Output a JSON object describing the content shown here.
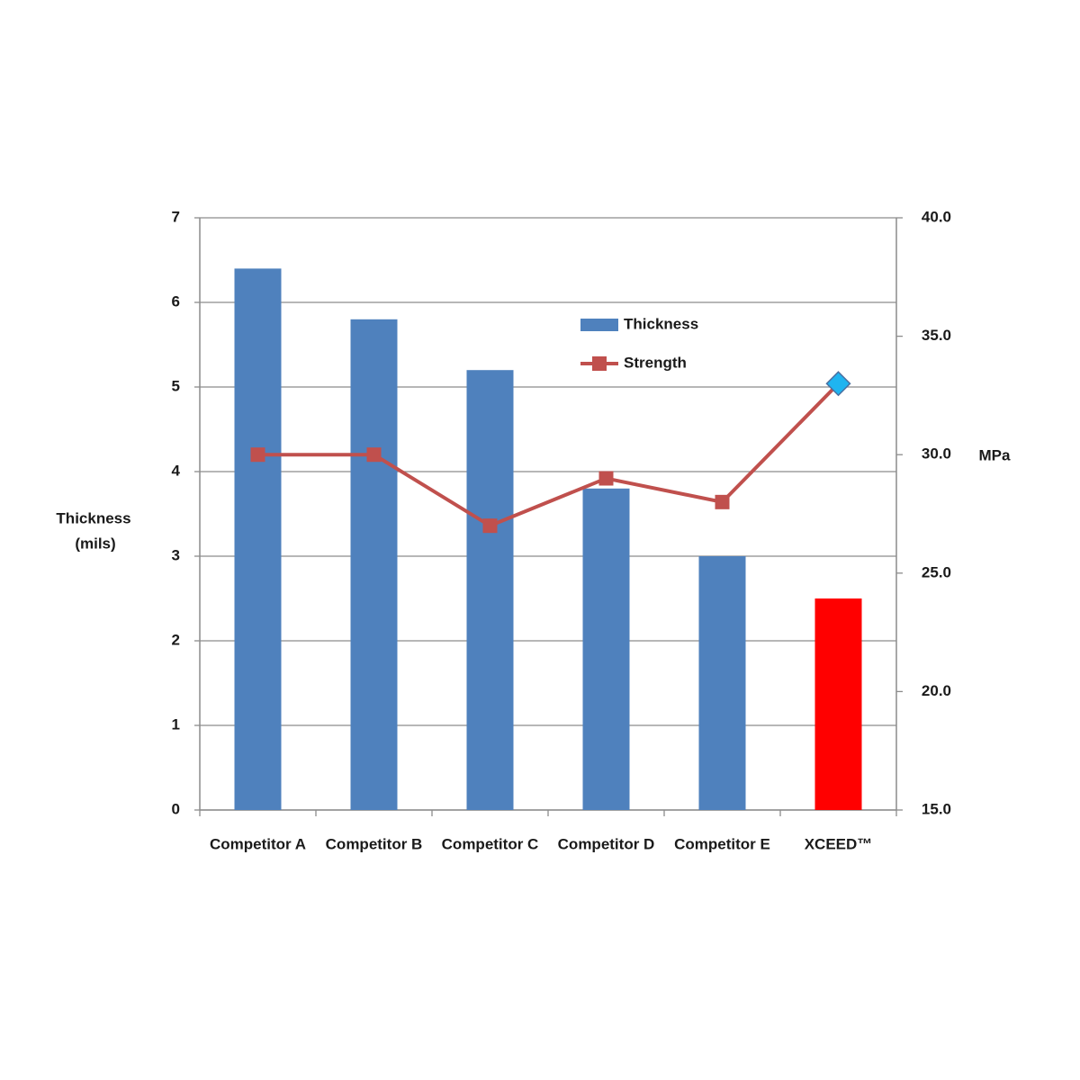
{
  "chart_data": {
    "type": "bar_line",
    "categories": [
      "Competitor A",
      "Competitor B",
      "Competitor C",
      "Competitor D",
      "Competitor E",
      "XCEED™"
    ],
    "series": [
      {
        "name": "Thickness",
        "type": "bar",
        "color": "#4f81bd",
        "point_colors": [
          "#4f81bd",
          "#4f81bd",
          "#4f81bd",
          "#4f81bd",
          "#4f81bd",
          "#ff0000"
        ],
        "values": [
          6.4,
          5.8,
          5.2,
          3.8,
          3.0,
          2.5
        ]
      },
      {
        "name": "Strength",
        "type": "line",
        "axis": "y2",
        "color": "#c0504d",
        "point_colors": [
          "#c0504d",
          "#c0504d",
          "#c0504d",
          "#c0504d",
          "#c0504d",
          "#1fb4f0"
        ],
        "markers": [
          "square",
          "square",
          "square",
          "square",
          "square",
          "diamond"
        ],
        "values": [
          30,
          30,
          27,
          29,
          28,
          33
        ]
      }
    ],
    "ylabel": [
      "Thickness",
      "(mils)"
    ],
    "y2label": "MPa",
    "ylim": [
      0,
      7
    ],
    "yticks": [
      0,
      1,
      2,
      3,
      4,
      5,
      6,
      7
    ],
    "y2lim": [
      15,
      40
    ],
    "y2ticks": [
      {
        "value": 15,
        "label": "15.0"
      },
      {
        "value": 20,
        "label": "20.0"
      },
      {
        "value": 25,
        "label": "25.0"
      },
      {
        "value": 30,
        "label": "30.0"
      },
      {
        "value": 35,
        "label": "35.0"
      },
      {
        "value": 40,
        "label": "40.0"
      }
    ],
    "grid": true,
    "legend": "upper center"
  }
}
